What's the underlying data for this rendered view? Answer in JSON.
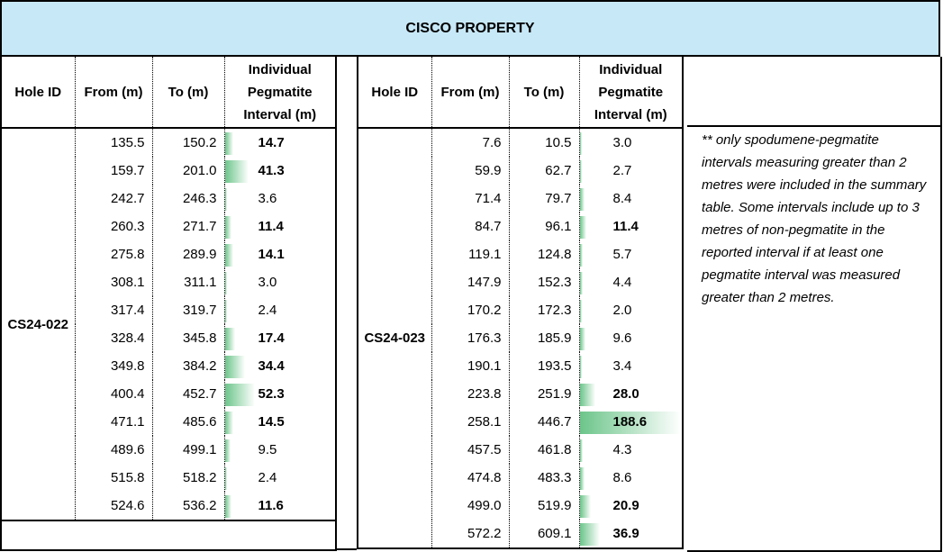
{
  "title": "CISCO PROPERTY",
  "headers": {
    "hole_id": "Hole ID",
    "from": "From (m)",
    "to": "To (m)",
    "interval": "Individual Pegmatite Interval (m)"
  },
  "colors": {
    "title_bg": "#c7e8f7",
    "bar": "#6cc58a"
  },
  "bar_scale_max": 188.6,
  "bold_threshold": 10,
  "holes": [
    {
      "hole_id": "CS24-022",
      "rows": [
        {
          "from": "135.5",
          "to": "150.2",
          "interval": "14.7"
        },
        {
          "from": "159.7",
          "to": "201.0",
          "interval": "41.3"
        },
        {
          "from": "242.7",
          "to": "246.3",
          "interval": "3.6"
        },
        {
          "from": "260.3",
          "to": "271.7",
          "interval": "11.4"
        },
        {
          "from": "275.8",
          "to": "289.9",
          "interval": "14.1"
        },
        {
          "from": "308.1",
          "to": "311.1",
          "interval": "3.0"
        },
        {
          "from": "317.4",
          "to": "319.7",
          "interval": "2.4"
        },
        {
          "from": "328.4",
          "to": "345.8",
          "interval": "17.4"
        },
        {
          "from": "349.8",
          "to": "384.2",
          "interval": "34.4"
        },
        {
          "from": "400.4",
          "to": "452.7",
          "interval": "52.3"
        },
        {
          "from": "471.1",
          "to": "485.6",
          "interval": "14.5"
        },
        {
          "from": "489.6",
          "to": "499.1",
          "interval": "9.5"
        },
        {
          "from": "515.8",
          "to": "518.2",
          "interval": "2.4"
        },
        {
          "from": "524.6",
          "to": "536.2",
          "interval": "11.6"
        }
      ]
    },
    {
      "hole_id": "CS24-023",
      "rows": [
        {
          "from": "7.6",
          "to": "10.5",
          "interval": "3.0"
        },
        {
          "from": "59.9",
          "to": "62.7",
          "interval": "2.7"
        },
        {
          "from": "71.4",
          "to": "79.7",
          "interval": "8.4"
        },
        {
          "from": "84.7",
          "to": "96.1",
          "interval": "11.4"
        },
        {
          "from": "119.1",
          "to": "124.8",
          "interval": "5.7"
        },
        {
          "from": "147.9",
          "to": "152.3",
          "interval": "4.4"
        },
        {
          "from": "170.2",
          "to": "172.3",
          "interval": "2.0"
        },
        {
          "from": "176.3",
          "to": "185.9",
          "interval": "9.6"
        },
        {
          "from": "190.1",
          "to": "193.5",
          "interval": "3.4"
        },
        {
          "from": "223.8",
          "to": "251.9",
          "interval": "28.0"
        },
        {
          "from": "258.1",
          "to": "446.7",
          "interval": "188.6"
        },
        {
          "from": "457.5",
          "to": "461.8",
          "interval": "4.3"
        },
        {
          "from": "474.8",
          "to": "483.3",
          "interval": "8.6"
        },
        {
          "from": "499.0",
          "to": "519.9",
          "interval": "20.9"
        },
        {
          "from": "572.2",
          "to": "609.1",
          "interval": "36.9"
        }
      ]
    }
  ],
  "note": "** only spodumene-pegmatite intervals measuring greater than 2 metres were included in the summary table.  Some intervals include up to 3 metres of non-pegmatite in the reported interval if at least one pegmatite interval was measured greater than 2 metres."
}
